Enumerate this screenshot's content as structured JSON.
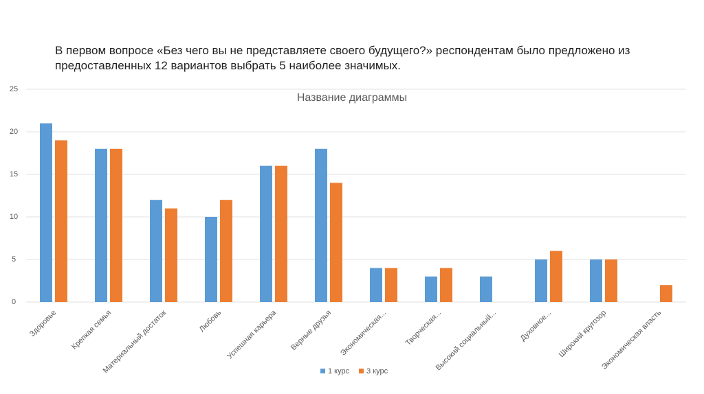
{
  "slide_text": "В первом вопросе «Без чего вы не представляете своего будущего?» респондентам было предложено из предоставленных 12 вариантов выбрать 5 наиболее значимых.",
  "chart_data": {
    "type": "bar",
    "title": "Название диаграммы",
    "categories": [
      "Здоровье",
      "Крепкая семья",
      "Материальный достаток",
      "Любовь",
      "Успешная карьера",
      "Верные друзья",
      "Экономическая...",
      "Творческая...",
      "Высокий социальный...",
      "Духовное...",
      "Широкий кругозор",
      "Экономическая власть"
    ],
    "series": [
      {
        "name": "1 курс",
        "color": "#5b9bd5",
        "values": [
          21,
          18,
          12,
          10,
          16,
          18,
          4,
          3,
          3,
          5,
          5,
          0
        ]
      },
      {
        "name": "3 курс",
        "color": "#ed7d31",
        "values": [
          19,
          18,
          11,
          12,
          16,
          14,
          4,
          4,
          0,
          6,
          5,
          2
        ]
      }
    ],
    "ylim": [
      0,
      25
    ],
    "yticks": [
      0,
      5,
      10,
      15,
      20,
      25
    ],
    "grid": true,
    "legend": "bottom"
  }
}
